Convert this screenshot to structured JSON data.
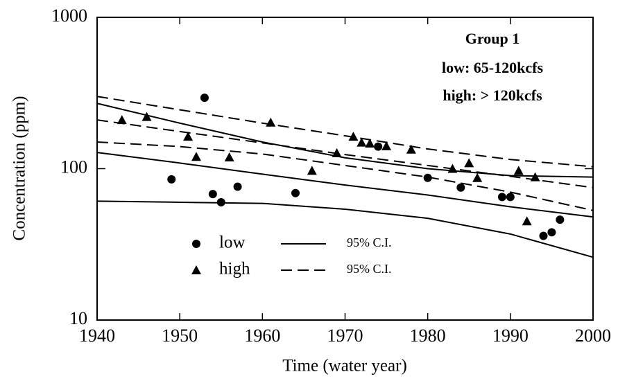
{
  "chart_data": {
    "type": "scatter",
    "annotations": [
      "Group 1",
      "low: 65-120kcfs",
      "high: > 120kcfs"
    ],
    "xlabel": "Time (water year)",
    "ylabel": "Concentration (ppm)",
    "xlim": [
      1940,
      2000
    ],
    "xticks": [
      1940,
      1950,
      1960,
      1970,
      1980,
      1990,
      2000
    ],
    "ylim": [
      10,
      1000
    ],
    "yticks": [
      10,
      100,
      1000
    ],
    "log_y": true,
    "series": [
      {
        "name": "low",
        "marker": "circle",
        "color": "#000",
        "x": [
          1949,
          1953,
          1954,
          1955,
          1957,
          1964,
          1974,
          1980,
          1984,
          1989,
          1990,
          1994,
          1995,
          1996
        ],
        "values": [
          85,
          294,
          68,
          60,
          76,
          69,
          140,
          87,
          75,
          65,
          65,
          36,
          38,
          46
        ]
      },
      {
        "name": "high",
        "marker": "triangle",
        "color": "#000",
        "x": [
          1943,
          1946,
          1951,
          1952,
          1956,
          1961,
          1966,
          1969,
          1971,
          1972,
          1973,
          1975,
          1978,
          1983,
          1985,
          1986,
          1991,
          1992,
          1993
        ],
        "values": [
          210,
          220,
          163,
          120,
          119,
          202,
          97,
          127,
          163,
          149,
          147,
          141,
          134,
          100,
          109,
          87,
          97,
          45,
          88
        ]
      }
    ],
    "lines": [
      {
        "style": "solid",
        "x": [
          1940,
          1950,
          1960,
          1970,
          1980,
          1990,
          2000
        ],
        "values": [
          128,
          109,
          92,
          78,
          67,
          56,
          48
        ]
      },
      {
        "style": "solid",
        "x": [
          1940,
          1950,
          1960,
          1970,
          1980,
          1990,
          2000
        ],
        "values": [
          270,
          200,
          150,
          118,
          100,
          90,
          88
        ]
      },
      {
        "name": "95% C.I.",
        "style": "solid",
        "x": [
          1940,
          1950,
          1960,
          1970,
          1980,
          1990,
          2000
        ],
        "values": [
          61,
          60,
          59,
          54,
          47,
          37,
          26
        ]
      },
      {
        "style": "dashed",
        "x": [
          1940,
          1950,
          1960,
          1970,
          1980,
          1990,
          2000
        ],
        "values": [
          210,
          176,
          148,
          124,
          105,
          89,
          75
        ]
      },
      {
        "style": "dashed",
        "x": [
          1940,
          1950,
          1960,
          1970,
          1980,
          1990,
          2000
        ],
        "values": [
          300,
          245,
          200,
          165,
          135,
          115,
          103
        ]
      },
      {
        "name": "95% C.I.",
        "style": "dashed",
        "x": [
          1940,
          1950,
          1960,
          1970,
          1980,
          1990,
          2000
        ],
        "values": [
          150,
          140,
          125,
          105,
          88,
          70,
          53
        ]
      }
    ]
  }
}
